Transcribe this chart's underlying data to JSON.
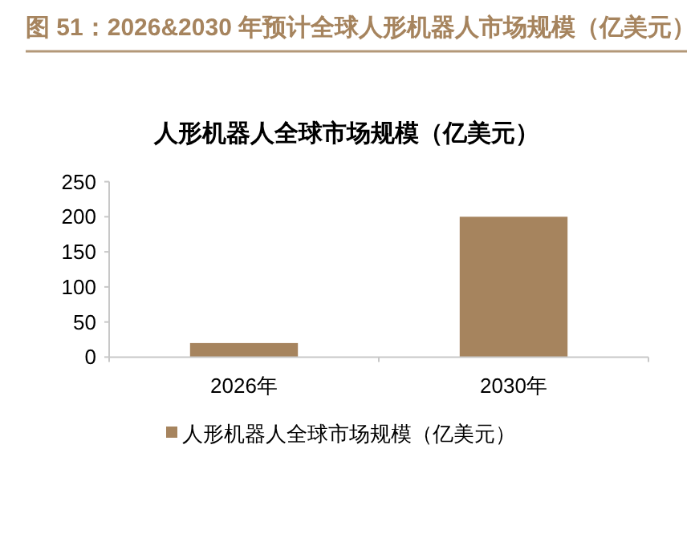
{
  "chart_data": {
    "type": "bar",
    "title": "图 51：2026&2030 年预计全球人形机器人市场规模（亿美元）",
    "subtitle": "人形机器人全球市场规模（亿美元）",
    "categories": [
      "2026年",
      "2030年"
    ],
    "series": [
      {
        "name": "人形机器人全球市场规模（亿美元）",
        "color": "#a6845e",
        "values": [
          20,
          200
        ]
      }
    ],
    "ylim": [
      0,
      250
    ],
    "yticks": [
      0,
      50,
      100,
      150,
      200,
      250
    ],
    "legend": "bottom"
  }
}
